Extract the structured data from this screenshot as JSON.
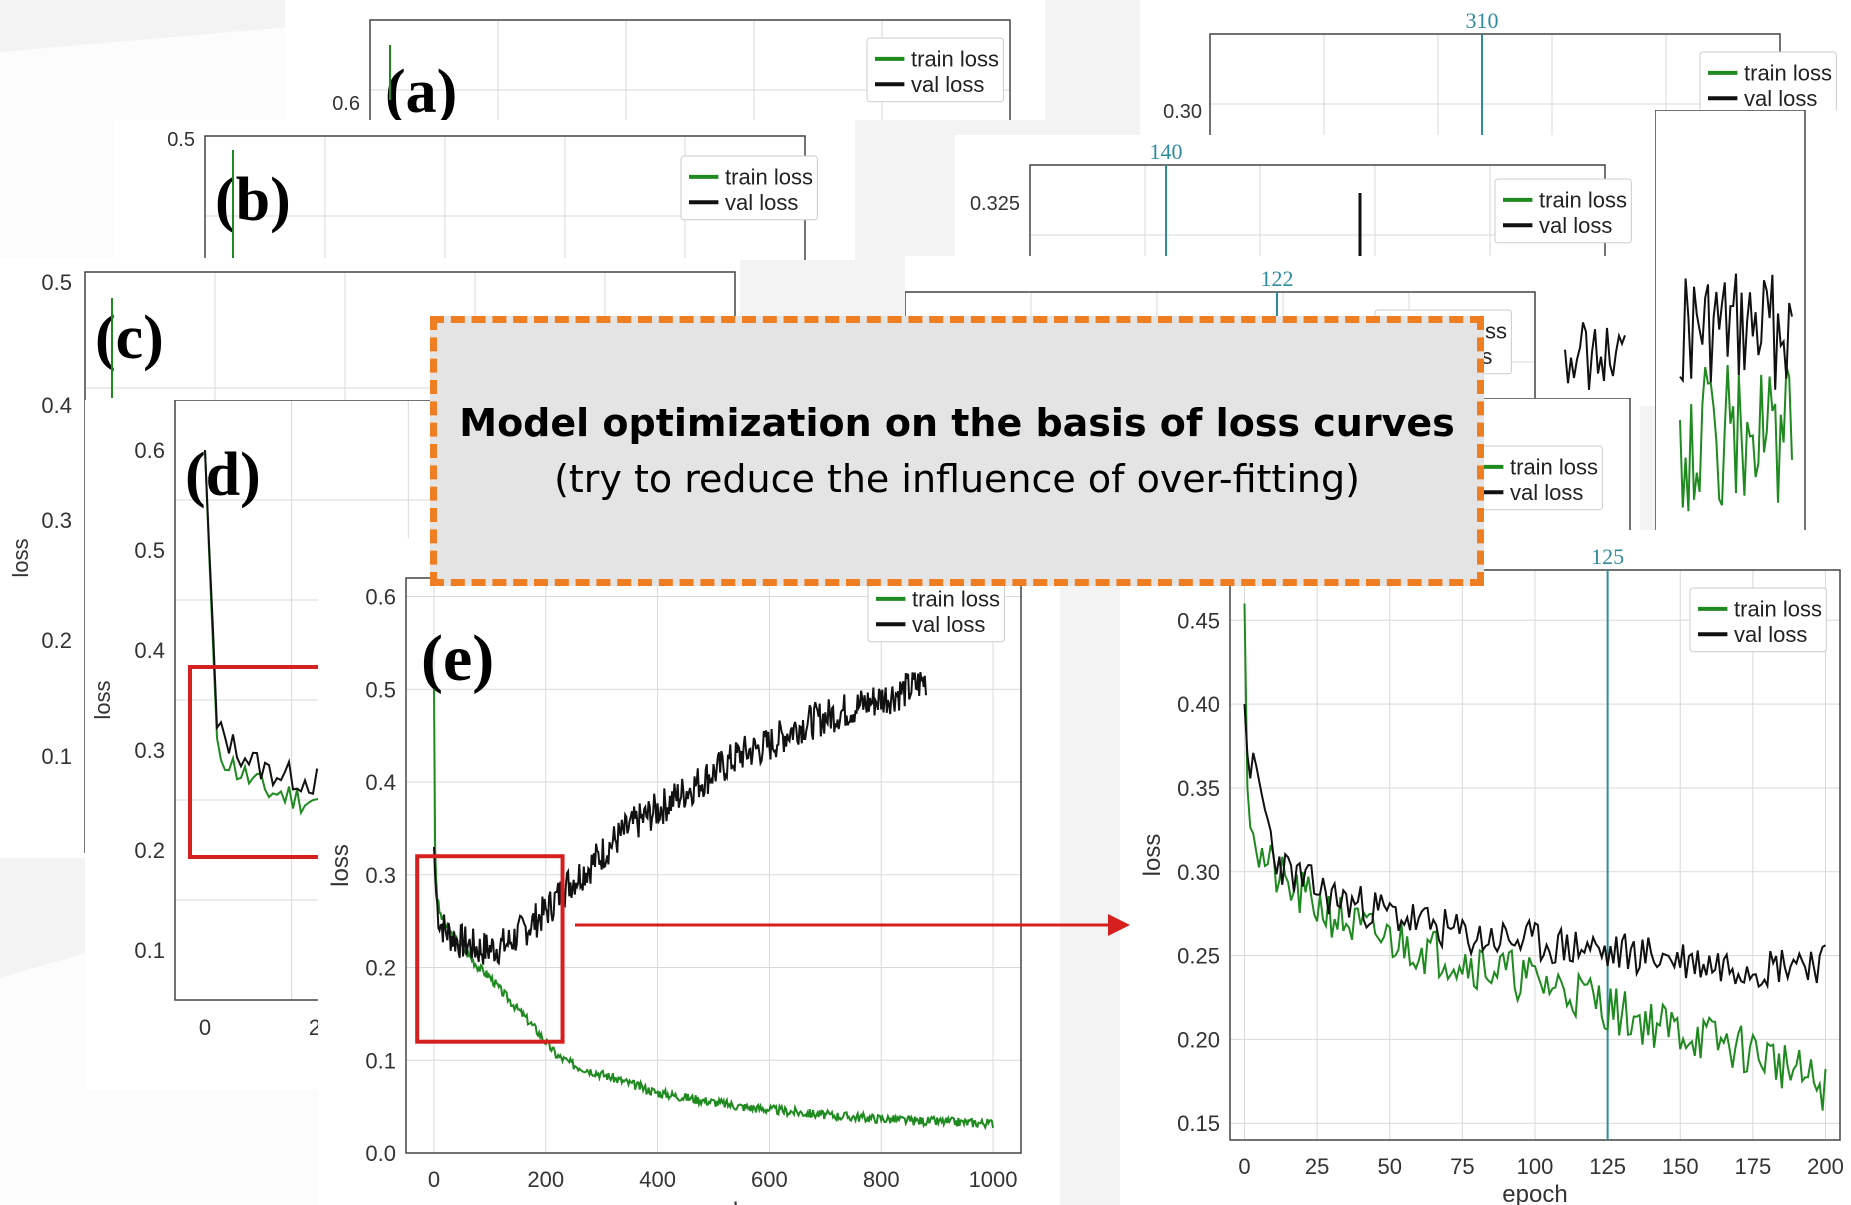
{
  "callout": {
    "title": "Model optimization on the basis of loss curves",
    "subtitle": "(try to reduce the influence of over-fitting)"
  },
  "colors": {
    "train": "#1f8a1f",
    "val": "#111111",
    "callout_border": "#ef7d22",
    "highlight": "#d61f1f",
    "marker": "#2f8c9e"
  },
  "legend": {
    "train": "train loss",
    "val": "val loss"
  },
  "axis_labels": {
    "loss": "loss",
    "epoch": "epoch"
  },
  "chart_data": [
    {
      "id": "a",
      "type": "line",
      "panel_label": "(a)",
      "yticks": [
        0.6
      ],
      "xlabel": "",
      "ylabel": "",
      "series": [
        {
          "name": "train loss"
        },
        {
          "name": "val loss"
        }
      ]
    },
    {
      "id": "b",
      "type": "line",
      "panel_label": "(b)",
      "yticks": [
        0.5
      ],
      "xlabel": "",
      "ylabel": "",
      "series": [
        {
          "name": "train loss"
        },
        {
          "name": "val loss"
        }
      ]
    },
    {
      "id": "c",
      "type": "line",
      "panel_label": "(c)",
      "yticks": [
        0.5,
        0.4,
        0.3,
        0.2,
        0.1
      ],
      "ylabel": "loss",
      "ylim": [
        0.0,
        0.5
      ],
      "series": [
        {
          "name": "train loss"
        }
      ]
    },
    {
      "id": "d",
      "type": "line",
      "panel_label": "(d)",
      "yticks": [
        0.6,
        0.5,
        0.4,
        0.3,
        0.2,
        0.1
      ],
      "xticks": [
        "0",
        "2"
      ],
      "ylabel": "loss",
      "ylim": [
        0.05,
        0.65
      ],
      "series": [
        {
          "name": "train loss",
          "x": [
            0,
            3,
            8,
            15,
            25,
            40,
            60,
            80,
            100,
            120
          ],
          "y": [
            0.6,
            0.3,
            0.28,
            0.26,
            0.25,
            0.24,
            0.22,
            0.21,
            0.2,
            0.19
          ]
        },
        {
          "name": "val loss",
          "x": [
            0,
            3,
            8,
            15,
            25,
            40,
            60,
            80,
            100,
            120
          ],
          "y": [
            0.6,
            0.32,
            0.3,
            0.28,
            0.27,
            0.26,
            0.25,
            0.245,
            0.24,
            0.24
          ]
        }
      ]
    },
    {
      "id": "e",
      "type": "line",
      "panel_label": "(e)",
      "xticks": [
        0,
        200,
        400,
        600,
        800,
        1000
      ],
      "yticks": [
        0.0,
        0.1,
        0.2,
        0.3,
        0.4,
        0.5,
        0.6
      ],
      "xlim": [
        -50,
        1050
      ],
      "ylim": [
        0.0,
        0.62
      ],
      "xlabel": "epoch",
      "ylabel": "loss",
      "series": [
        {
          "name": "train loss",
          "x": [
            0,
            2,
            5,
            10,
            20,
            40,
            60,
            80,
            100,
            120,
            150,
            180,
            200,
            220,
            250,
            300,
            350,
            400,
            450,
            500,
            550,
            600,
            650,
            700,
            750,
            800,
            850,
            900,
            950,
            1000
          ],
          "y": [
            0.5,
            0.33,
            0.28,
            0.26,
            0.245,
            0.23,
            0.215,
            0.2,
            0.19,
            0.175,
            0.155,
            0.135,
            0.12,
            0.105,
            0.095,
            0.085,
            0.075,
            0.065,
            0.06,
            0.055,
            0.05,
            0.047,
            0.044,
            0.041,
            0.039,
            0.037,
            0.035,
            0.034,
            0.033,
            0.032
          ]
        },
        {
          "name": "val loss",
          "x": [
            0,
            2,
            5,
            10,
            20,
            40,
            60,
            80,
            100,
            130,
            160,
            200,
            240,
            280,
            320,
            360,
            400,
            450,
            500,
            550,
            600,
            650,
            700,
            750,
            800,
            850,
            880
          ],
          "y": [
            0.33,
            0.3,
            0.27,
            0.25,
            0.24,
            0.23,
            0.225,
            0.22,
            0.22,
            0.225,
            0.24,
            0.26,
            0.29,
            0.31,
            0.335,
            0.355,
            0.37,
            0.39,
            0.41,
            0.43,
            0.44,
            0.46,
            0.47,
            0.48,
            0.49,
            0.5,
            0.51
          ]
        }
      ]
    },
    {
      "id": "f",
      "type": "line",
      "yticks": [
        0.3
      ],
      "marker_epoch": "310",
      "series": [
        {
          "name": "train loss"
        },
        {
          "name": "val loss"
        }
      ]
    },
    {
      "id": "g",
      "type": "line",
      "yticks": [
        0.325
      ],
      "marker_epoch": "140",
      "series": [
        {
          "name": "train loss"
        },
        {
          "name": "val loss"
        }
      ]
    },
    {
      "id": "h",
      "type": "line",
      "marker_epoch": "122",
      "series": [
        {
          "name": "train loss"
        },
        {
          "name": "val loss"
        }
      ]
    },
    {
      "id": "i",
      "type": "line",
      "series": [
        {
          "name": "train loss"
        },
        {
          "name": "val loss"
        }
      ]
    },
    {
      "id": "zoom",
      "type": "line",
      "xticks": [
        0,
        25,
        50,
        75,
        100,
        125,
        150,
        175,
        200
      ],
      "yticks": [
        0.15,
        0.2,
        0.25,
        0.3,
        0.35,
        0.4,
        0.45
      ],
      "xlim": [
        -5,
        205
      ],
      "ylim": [
        0.14,
        0.48
      ],
      "xlabel": "epoch",
      "ylabel": "loss",
      "marker_epoch": 125,
      "series": [
        {
          "name": "train loss",
          "x": [
            0,
            1,
            3,
            5,
            8,
            10,
            15,
            20,
            25,
            30,
            35,
            40,
            45,
            50,
            60,
            70,
            80,
            90,
            100,
            110,
            120,
            125,
            130,
            140,
            150,
            160,
            170,
            180,
            185,
            190,
            195,
            200
          ],
          "y": [
            0.46,
            0.35,
            0.33,
            0.31,
            0.305,
            0.3,
            0.29,
            0.285,
            0.28,
            0.275,
            0.27,
            0.265,
            0.262,
            0.26,
            0.255,
            0.25,
            0.245,
            0.24,
            0.235,
            0.23,
            0.225,
            0.22,
            0.215,
            0.21,
            0.205,
            0.2,
            0.195,
            0.19,
            0.185,
            0.18,
            0.175,
            0.17
          ]
        },
        {
          "name": "val loss",
          "x": [
            0,
            1,
            3,
            5,
            8,
            10,
            15,
            20,
            25,
            30,
            40,
            50,
            60,
            70,
            80,
            90,
            100,
            110,
            120,
            125,
            130,
            140,
            150,
            160,
            170,
            180,
            190,
            200
          ],
          "y": [
            0.4,
            0.37,
            0.36,
            0.35,
            0.33,
            0.31,
            0.3,
            0.295,
            0.29,
            0.285,
            0.28,
            0.275,
            0.27,
            0.265,
            0.26,
            0.26,
            0.258,
            0.255,
            0.255,
            0.25,
            0.252,
            0.25,
            0.248,
            0.245,
            0.245,
            0.243,
            0.248,
            0.245
          ]
        }
      ]
    }
  ]
}
